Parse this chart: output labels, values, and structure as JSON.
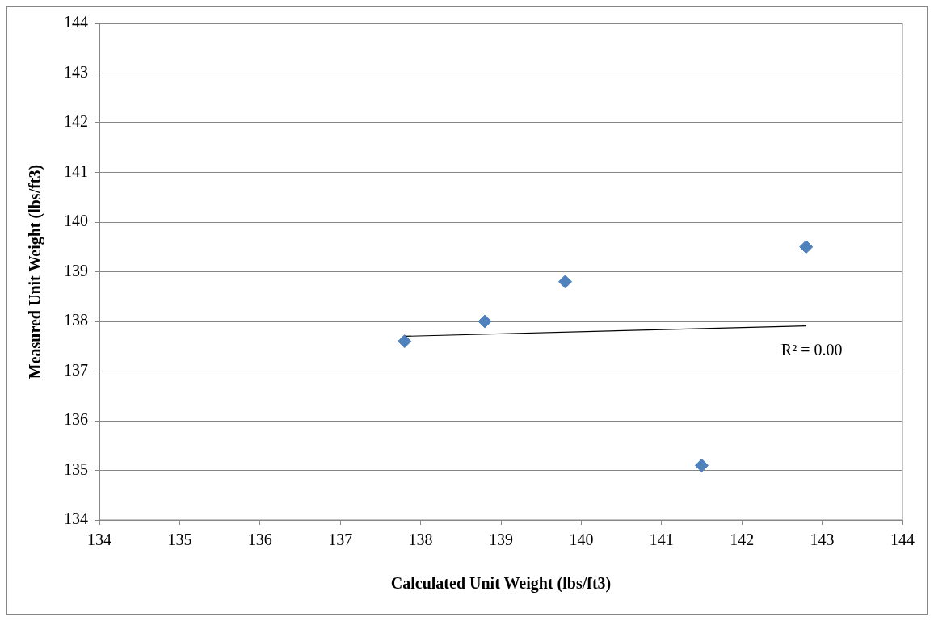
{
  "chart_data": {
    "type": "scatter",
    "xlabel": "Calculated Unit Weight (lbs/ft3)",
    "ylabel": "Measured Unit Weight (lbs/ft3)",
    "x": [
      137.8,
      138.8,
      139.8,
      141.5,
      142.8
    ],
    "series": [
      {
        "type": "scatter",
        "color": "#4f81bd",
        "marker": "diamond",
        "values": [
          137.6,
          138.0,
          138.8,
          135.1,
          139.5
        ]
      },
      {
        "type": "line",
        "color": "#000000",
        "marker": "none",
        "x": [
          137.8,
          142.8
        ],
        "values": [
          137.7,
          137.91
        ]
      }
    ],
    "xlim": [
      134,
      144
    ],
    "xticks": [
      134,
      135,
      136,
      137,
      138,
      139,
      140,
      141,
      142,
      143,
      144
    ],
    "ylim": [
      134,
      144
    ],
    "yticks": [
      134,
      135,
      136,
      137,
      138,
      139,
      140,
      141,
      142,
      143,
      144
    ],
    "grid": "y",
    "legend": false,
    "annotations": [
      "R² = 0.00"
    ]
  }
}
